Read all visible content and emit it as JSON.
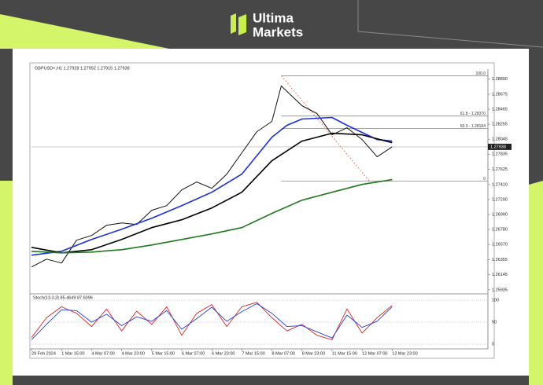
{
  "brand": {
    "line1": "Ultima",
    "line2": "Markets"
  },
  "chart_data": {
    "type": "line",
    "title": "GBPUSD+,H1  1.27928 1.27952 1.27915 1.27938",
    "xlim": [
      0,
      243
    ],
    "xticks": [
      {
        "value": 0,
        "label": "29 Feb 2024"
      },
      {
        "value": 16,
        "label": "1 Mar 15:00"
      },
      {
        "value": 32,
        "label": "4 Mar 07:00"
      },
      {
        "value": 48,
        "label": "4 Mar 23:00"
      },
      {
        "value": 64,
        "label": "5 Mar 15:00"
      },
      {
        "value": 80,
        "label": "6 Mar 07:00"
      },
      {
        "value": 96,
        "label": "6 Mar 23:00"
      },
      {
        "value": 112,
        "label": "7 Mar 15:00"
      },
      {
        "value": 128,
        "label": "8 Mar 07:00"
      },
      {
        "value": 144,
        "label": "8 Mar 23:00"
      },
      {
        "value": 160,
        "label": "11 Mar 15:00"
      },
      {
        "value": 176,
        "label": "12 Mar 07:00"
      },
      {
        "value": 192,
        "label": "12 Mar 23:00"
      }
    ],
    "ylim": [
      1.259,
      1.2895
    ],
    "yticks": [
      {
        "value": 1.2889,
        "label": "1.28890"
      },
      1.28675,
      1.28465,
      1.28255,
      1.28045,
      1.27835,
      1.27625,
      {
        "value": 1.2741,
        "label": "1.27410"
      },
      {
        "value": 1.272,
        "label": "1.27200"
      },
      {
        "value": 1.2699,
        "label": "1.26990"
      },
      {
        "value": 1.2678,
        "label": "1.26780"
      },
      {
        "value": 1.2657,
        "label": "1.26570"
      },
      1.26355,
      1.26145,
      1.25935
    ],
    "last_price": 1.27938,
    "series": [
      {
        "color": "#111111",
        "x": [
          0,
          8,
          16,
          24,
          32,
          40,
          48,
          56,
          64,
          72,
          80,
          88,
          96,
          104,
          112,
          120,
          128,
          133,
          144,
          152,
          160,
          168,
          176,
          184,
          192
        ],
        "values": [
          1.26255,
          1.26365,
          1.2631,
          1.2663,
          1.26696,
          1.26839,
          1.26872,
          1.2685,
          1.27049,
          1.27115,
          1.27335,
          1.27446,
          1.27357,
          1.27556,
          1.27854,
          1.28151,
          1.28295,
          1.28791,
          1.28515,
          1.28405,
          1.28107,
          1.28206,
          1.28041,
          1.27798,
          1.27938
        ]
      },
      {
        "color": "#1a2fe0",
        "x": [
          0,
          16,
          32,
          48,
          64,
          80,
          96,
          112,
          128,
          136,
          144,
          160,
          168,
          184,
          192
        ],
        "values": [
          1.2642,
          1.26475,
          1.2664,
          1.26784,
          1.26938,
          1.27115,
          1.27302,
          1.27556,
          1.28074,
          1.2824,
          1.28328,
          1.2835,
          1.2824,
          1.28041,
          1.28019
        ]
      },
      {
        "color": "#000000",
        "x": [
          0,
          16,
          32,
          48,
          64,
          80,
          96,
          112,
          128,
          144,
          160,
          176,
          192
        ],
        "values": [
          1.2653,
          1.26453,
          1.26497,
          1.2664,
          1.26806,
          1.26916,
          1.27082,
          1.27302,
          1.27743,
          1.28019,
          1.28129,
          1.28107,
          1.27997
        ]
      },
      {
        "color": "#1f7a1f",
        "x": [
          0,
          16,
          32,
          48,
          64,
          80,
          96,
          112,
          128,
          144,
          160,
          176,
          192
        ],
        "values": [
          1.26475,
          1.26453,
          1.26464,
          1.26497,
          1.26563,
          1.2664,
          1.26718,
          1.26806,
          1.27005,
          1.2719,
          1.27302,
          1.27412,
          1.27479
        ]
      }
    ],
    "fib": {
      "x_start": 133,
      "x_end": 180,
      "line_color": "#e8735a",
      "levels": [
        {
          "label": "100.0",
          "value": 1.28934
        },
        {
          "label": "61.8 - 1.28370",
          "value": 1.2837
        },
        {
          "label": "50.0 - 1.28194",
          "value": 1.28194
        },
        {
          "label": "0",
          "value": 1.27457
        }
      ]
    },
    "oscillator": {
      "title": "Stoch(13,3,3) 85.4649 87.6096",
      "ylim": [
        0,
        100
      ],
      "yticks": [
        0,
        50,
        100
      ],
      "series": [
        {
          "color": "#e02020",
          "x": [
            0,
            8,
            16,
            24,
            32,
            40,
            48,
            56,
            64,
            72,
            80,
            88,
            96,
            104,
            112,
            120,
            128,
            136,
            144,
            152,
            160,
            168,
            176,
            184,
            192
          ],
          "values": [
            15,
            60,
            85,
            70,
            40,
            80,
            30,
            75,
            45,
            85,
            20,
            70,
            90,
            40,
            85,
            95,
            60,
            30,
            45,
            20,
            10,
            80,
            25,
            60,
            88
          ]
        },
        {
          "color": "#2040e0",
          "x": [
            0,
            8,
            16,
            24,
            32,
            40,
            48,
            56,
            64,
            72,
            80,
            88,
            96,
            104,
            112,
            120,
            128,
            136,
            144,
            152,
            160,
            168,
            176,
            184,
            192
          ],
          "values": [
            10,
            45,
            78,
            76,
            50,
            68,
            42,
            62,
            52,
            76,
            34,
            58,
            84,
            52,
            74,
            92,
            70,
            40,
            42,
            28,
            14,
            66,
            38,
            52,
            85
          ]
        }
      ]
    }
  }
}
